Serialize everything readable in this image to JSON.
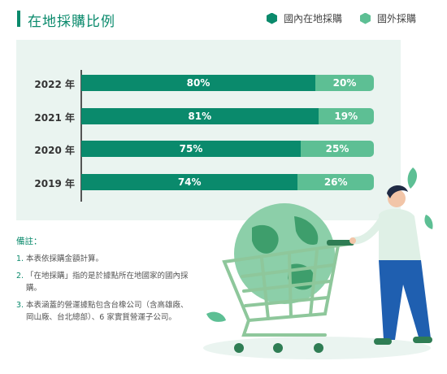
{
  "header": {
    "title": "在地採購比例"
  },
  "legend": [
    {
      "label": "國內在地採購",
      "color": "#0a8a6c"
    },
    {
      "label": "國外採購",
      "color": "#5dbf94"
    }
  ],
  "chart_data": {
    "type": "bar",
    "orientation": "horizontal",
    "stacked": true,
    "title": "在地採購比例",
    "categories": [
      "2022 年",
      "2021 年",
      "2020 年",
      "2019 年"
    ],
    "series": [
      {
        "name": "國內在地採購",
        "values": [
          80,
          81,
          75,
          74
        ],
        "labels": [
          "80%",
          "81%",
          "75%",
          "74%"
        ],
        "color": "#0a8a6c"
      },
      {
        "name": "國外採購",
        "values": [
          20,
          19,
          25,
          26
        ],
        "labels": [
          "20%",
          "19%",
          "25%",
          "26%"
        ],
        "color": "#5dbf94"
      }
    ],
    "xlim": [
      0,
      100
    ],
    "grid": false,
    "legend_position": "top-right"
  },
  "notes": {
    "heading": "備註：",
    "items": [
      {
        "num": "1.",
        "text": "本表依採購金額計算。"
      },
      {
        "num": "2.",
        "text": "「在地採購」指的是於據點所在地國家的國內採購。"
      },
      {
        "num": "3.",
        "text": "本表涵蓋的營運據點包含台橡公司（含高雄廠、岡山廠、台北總部）、6 家實質營運子公司。"
      }
    ]
  }
}
